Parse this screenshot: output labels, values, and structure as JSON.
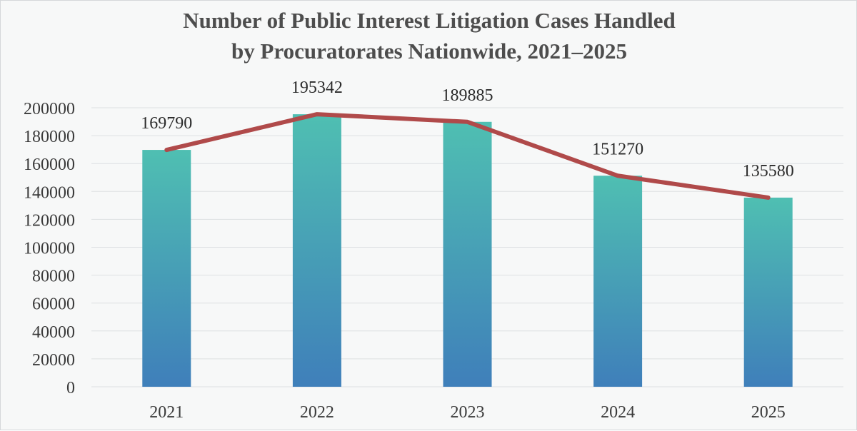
{
  "chart_data": {
    "type": "bar",
    "title_lines": [
      "Number of Public Interest Litigation Cases Handled",
      "by Procuratorates Nationwide, 2021–2025"
    ],
    "categories": [
      "2021",
      "2022",
      "2023",
      "2024",
      "2025"
    ],
    "values": [
      169790,
      195342,
      189885,
      151270,
      135580
    ],
    "data_labels": [
      "169790",
      "195342",
      "189885",
      "151270",
      "135580"
    ],
    "overlay": "line",
    "ylim": [
      0,
      200000
    ],
    "yticks": [
      "0",
      "20000",
      "40000",
      "60000",
      "80000",
      "100000",
      "120000",
      "140000",
      "160000",
      "180000",
      "200000"
    ],
    "grid": true,
    "legend": "none",
    "colors": {
      "bar_top": "#4fbfb2",
      "bar_bottom": "#3f7fba",
      "line": "#b04a4a",
      "grid": "#dde0e2",
      "text": "#4d4d4d"
    }
  }
}
